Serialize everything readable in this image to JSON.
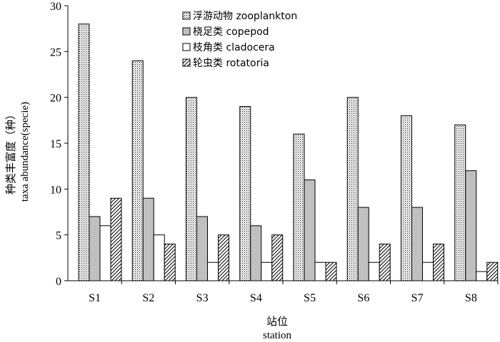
{
  "chart_data": {
    "type": "bar",
    "categories": [
      "S1",
      "S2",
      "S3",
      "S4",
      "S5",
      "S6",
      "S7",
      "S8"
    ],
    "series": [
      {
        "name": "浮游动物 zooplankton",
        "values": [
          28,
          24,
          20,
          19,
          16,
          20,
          18,
          17
        ],
        "fill": "dots"
      },
      {
        "name": "桡足类 copepod",
        "values": [
          7,
          9,
          7,
          6,
          11,
          8,
          8,
          12
        ],
        "fill": "#c0c0c0"
      },
      {
        "name": "枝角类 cladocera",
        "values": [
          6,
          5,
          2,
          2,
          2,
          2,
          2,
          1
        ],
        "fill": "#ffffff"
      },
      {
        "name": "轮虫类 rotatoria",
        "values": [
          9,
          4,
          5,
          5,
          2,
          4,
          4,
          2
        ],
        "fill": "hatch"
      }
    ],
    "ylim": [
      0,
      30
    ],
    "yticks": [
      0,
      5,
      10,
      15,
      20,
      25,
      30
    ],
    "ylabel_cn": "种类丰富度（种）",
    "ylabel_en": "taxa abundance(specie)",
    "xlabel_cn": "站位",
    "xlabel_en": "station",
    "legend_position": "top-center",
    "grid": false
  }
}
